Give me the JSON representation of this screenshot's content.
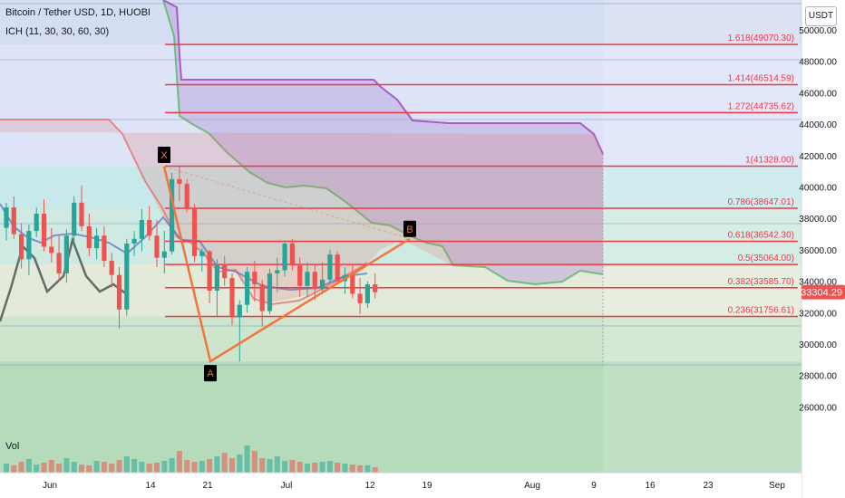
{
  "header": {
    "title": "Bitcoin / Tether USD, 1D, HUOBI",
    "indicator": "ICH (11, 30, 30, 60, 30)"
  },
  "price_axis": {
    "unit_label": "USDT"
  },
  "volume": {
    "label": "Vol"
  },
  "colors": {
    "bull": "#26a69a",
    "bear": "#ef5350",
    "fib_line": "#f23645",
    "pattern": "#f4743b",
    "span_a": "#4caf50",
    "span_b": "#9c27b0",
    "lagging": "#555555"
  },
  "chart_data": {
    "type": "candlestick",
    "y_axis": {
      "ticks": [
        26000,
        28000,
        30000,
        32000,
        34000,
        36000,
        38000,
        40000,
        42000,
        44000,
        46000,
        48000,
        50000
      ],
      "range": [
        24200,
        52000
      ]
    },
    "x_axis": {
      "ticks": [
        "Jun",
        "14",
        "21",
        "Jul",
        "12",
        "19",
        "Aug",
        "9",
        "16",
        "23",
        "Sep"
      ]
    },
    "last_price": "33304.29",
    "fib_levels": [
      {
        "ratio": "1.618",
        "price": "49070.30",
        "label": "1.618(49070.30)"
      },
      {
        "ratio": "1.414",
        "price": "46514.59",
        "label": "1.414(46514.59)"
      },
      {
        "ratio": "1.272",
        "price": "44735.62",
        "label": "1.272(44735.62)"
      },
      {
        "ratio": "1",
        "price": "41328.00",
        "label": "1(41328.00)"
      },
      {
        "ratio": "0.786",
        "price": "38647.01",
        "label": "0.786(38647.01)"
      },
      {
        "ratio": "0.618",
        "price": "36542.30",
        "label": "0.618(36542.30)"
      },
      {
        "ratio": "0.5",
        "price": "35064.00",
        "label": "0.5(35064.00)"
      },
      {
        "ratio": "0.382",
        "price": "33585.70",
        "label": "0.382(33585.70)"
      },
      {
        "ratio": "0.236",
        "price": "31756.61",
        "label": "0.236(31756.61)"
      }
    ],
    "pattern_points": [
      {
        "label": "X",
        "price": 41300
      },
      {
        "label": "A",
        "price": 28900
      },
      {
        "label": "B",
        "price": 36700
      }
    ],
    "candles": [
      [
        37400,
        39000,
        36600,
        38700
      ],
      [
        38700,
        39400,
        36700,
        37000
      ],
      [
        37000,
        37700,
        34800,
        35400
      ],
      [
        35400,
        37600,
        34400,
        37200
      ],
      [
        37200,
        38700,
        36800,
        38300
      ],
      [
        38300,
        39200,
        35900,
        36200
      ],
      [
        36200,
        37400,
        35200,
        35800
      ],
      [
        35800,
        36900,
        34000,
        34500
      ],
      [
        34500,
        37300,
        33900,
        36900
      ],
      [
        36900,
        39400,
        36400,
        39000
      ],
      [
        39000,
        40100,
        37200,
        37500
      ],
      [
        37500,
        38300,
        35600,
        36100
      ],
      [
        36100,
        37400,
        35400,
        36900
      ],
      [
        36900,
        37500,
        34900,
        35300
      ],
      [
        35300,
        35800,
        33600,
        34400
      ],
      [
        34400,
        34900,
        31000,
        32200
      ],
      [
        32200,
        36700,
        31800,
        36400
      ],
      [
        36400,
        37200,
        35600,
        36700
      ],
      [
        36700,
        38600,
        35900,
        37900
      ],
      [
        37900,
        38800,
        36600,
        36900
      ],
      [
        36900,
        37900,
        34900,
        35500
      ],
      [
        35500,
        37200,
        34500,
        35900
      ],
      [
        35900,
        40900,
        35700,
        40500
      ],
      [
        40500,
        41300,
        39100,
        40200
      ],
      [
        40200,
        40500,
        38400,
        38600
      ],
      [
        38600,
        38900,
        35200,
        35600
      ],
      [
        35600,
        36100,
        34600,
        35900
      ],
      [
        35900,
        36000,
        32600,
        33400
      ],
      [
        33400,
        35400,
        31700,
        35100
      ],
      [
        35100,
        35600,
        33700,
        34200
      ],
      [
        34200,
        34500,
        31200,
        31700
      ],
      [
        31700,
        32800,
        28900,
        32500
      ],
      [
        32500,
        34900,
        32000,
        34600
      ],
      [
        34600,
        35300,
        32700,
        33800
      ],
      [
        33800,
        34100,
        31100,
        32100
      ],
      [
        32100,
        34800,
        31900,
        34500
      ],
      [
        34500,
        35500,
        33300,
        34700
      ],
      [
        34700,
        36600,
        34300,
        36400
      ],
      [
        36400,
        36700,
        34700,
        35000
      ],
      [
        35000,
        35500,
        33000,
        33700
      ],
      [
        33700,
        35200,
        33000,
        34600
      ],
      [
        34600,
        35000,
        32800,
        33500
      ],
      [
        33500,
        35200,
        33200,
        34100
      ],
      [
        34100,
        36000,
        33900,
        35700
      ],
      [
        35700,
        35900,
        33800,
        34000
      ],
      [
        34000,
        34900,
        33200,
        34400
      ],
      [
        34400,
        35000,
        32900,
        33200
      ],
      [
        33200,
        34200,
        31900,
        32600
      ],
      [
        32600,
        34000,
        32300,
        33800
      ],
      [
        33800,
        34500,
        32900,
        33300
      ]
    ]
  }
}
